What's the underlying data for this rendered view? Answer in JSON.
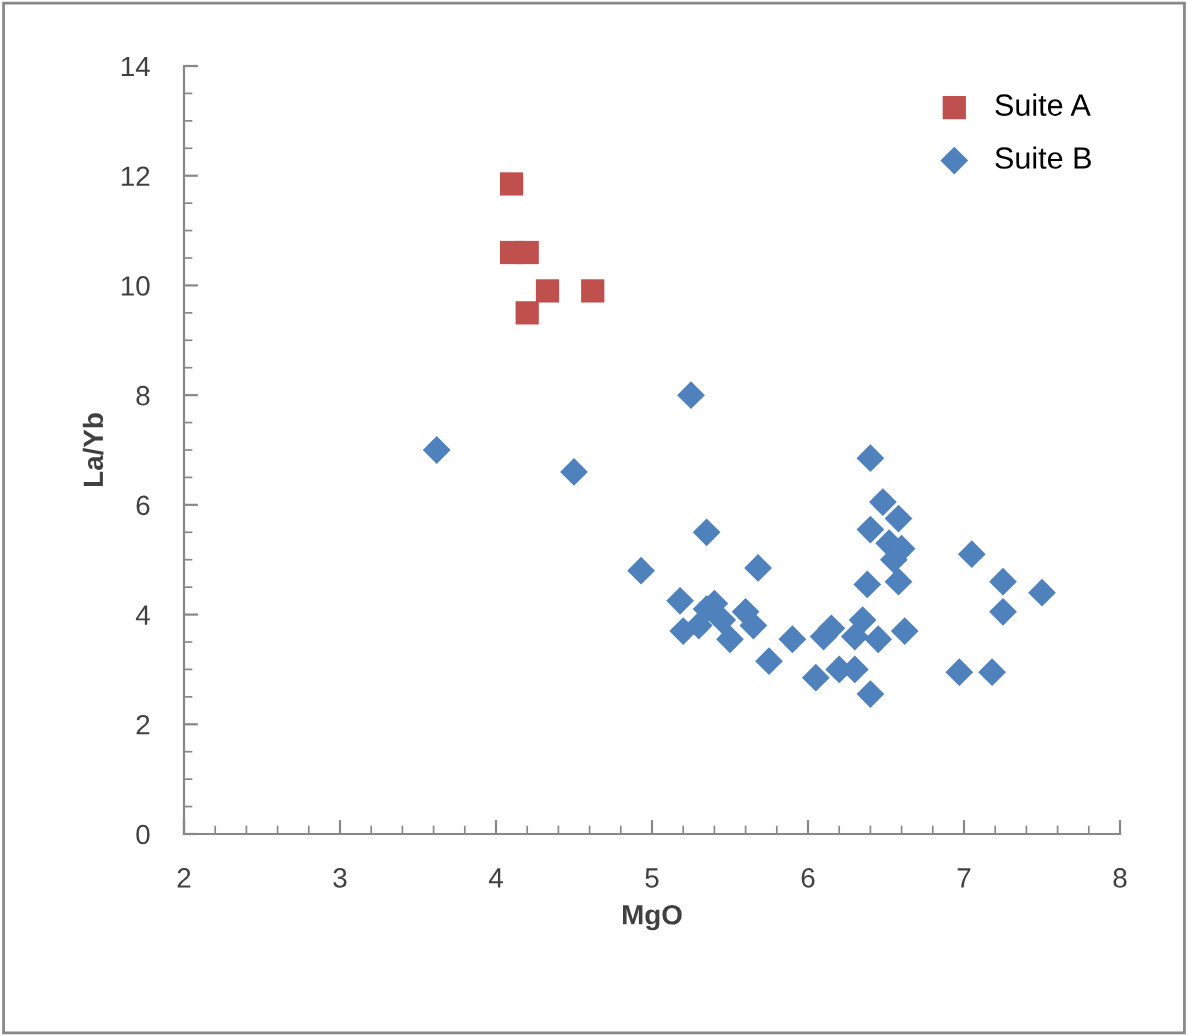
{
  "chart_data": {
    "type": "scatter",
    "xlabel": "MgO",
    "ylabel": "La/Yb",
    "xlim": [
      2,
      8
    ],
    "xticks": [
      2,
      3,
      4,
      5,
      6,
      7,
      8
    ],
    "ylim": [
      0,
      14
    ],
    "yticks": [
      0,
      2,
      4,
      6,
      8,
      10,
      12,
      14
    ],
    "grid": false,
    "legend": "top right",
    "series": [
      {
        "name": "Suite A",
        "color": "#c0504d",
        "marker": "square",
        "x": [
          4.1,
          4.1,
          4.2,
          4.33,
          4.2,
          4.62
        ],
        "values": [
          11.85,
          10.6,
          10.6,
          9.9,
          9.5,
          9.9
        ]
      },
      {
        "name": "Suite B",
        "color": "#4f81bd",
        "marker": "diamond",
        "x": [
          3.62,
          4.5,
          5.25,
          4.93,
          5.35,
          5.18,
          5.2,
          5.3,
          5.35,
          5.4,
          5.45,
          5.5,
          5.6,
          5.65,
          5.68,
          5.75,
          5.9,
          6.05,
          6.1,
          6.15,
          6.2,
          6.3,
          6.3,
          6.35,
          6.38,
          6.4,
          6.4,
          6.4,
          6.45,
          6.48,
          6.52,
          6.55,
          6.58,
          6.58,
          6.6,
          6.62,
          7.05,
          6.97,
          7.18,
          7.25,
          7.25,
          7.5
        ],
        "values": [
          7.0,
          6.6,
          8.0,
          4.8,
          5.5,
          4.25,
          3.7,
          3.8,
          4.1,
          4.2,
          3.9,
          3.55,
          4.05,
          3.8,
          4.85,
          3.15,
          3.55,
          2.85,
          3.6,
          3.75,
          3.0,
          3.0,
          3.6,
          3.9,
          4.55,
          5.55,
          6.85,
          2.55,
          3.55,
          6.05,
          5.3,
          5.0,
          5.75,
          4.6,
          5.2,
          3.7,
          5.1,
          2.95,
          2.95,
          4.6,
          4.05,
          4.4
        ]
      }
    ]
  }
}
